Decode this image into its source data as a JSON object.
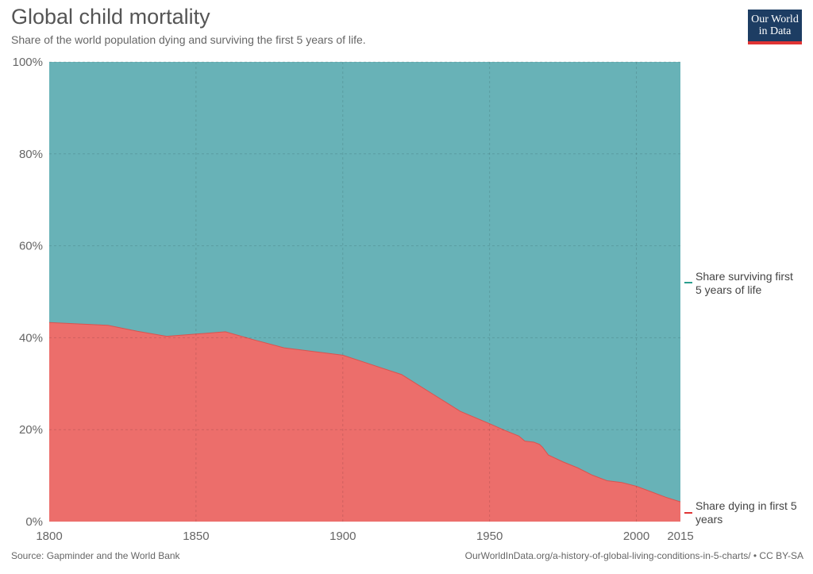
{
  "header": {
    "title": "Global child mortality",
    "subtitle": "Share of the world population dying and surviving the first 5 years of life."
  },
  "logo": {
    "line1": "Our World",
    "line2": "in Data",
    "bg": "#1d3d63",
    "accent": "#e03434"
  },
  "footer": {
    "source": "Source: Gapminder and the World Bank",
    "credit": "OurWorldInData.org/a-history-of-global-living-conditions-in-5-charts/ • CC BY-SA"
  },
  "chart_data": {
    "type": "area",
    "stacked": true,
    "x": [
      1800,
      1810,
      1820,
      1830,
      1840,
      1850,
      1860,
      1870,
      1880,
      1890,
      1900,
      1910,
      1920,
      1930,
      1940,
      1950,
      1955,
      1960,
      1962,
      1965,
      1967,
      1968,
      1970,
      1975,
      1980,
      1985,
      1990,
      1995,
      2000,
      2005,
      2010,
      2015
    ],
    "series": [
      {
        "name": "Share dying in first 5 years",
        "color": "#ec6e6b",
        "values": [
          43.3,
          43.0,
          42.7,
          41.4,
          40.3,
          40.8,
          41.3,
          39.5,
          37.8,
          37.0,
          36.2,
          34.1,
          32.0,
          28.0,
          24.0,
          21.3,
          19.9,
          18.6,
          17.5,
          17.3,
          16.8,
          16.2,
          14.5,
          13.0,
          11.7,
          10.1,
          8.9,
          8.5,
          7.7,
          6.5,
          5.3,
          4.3
        ]
      },
      {
        "name": "Share surviving first 5 years of life",
        "color": "#68b2b7",
        "values": [
          56.7,
          57.0,
          57.3,
          58.6,
          59.7,
          59.2,
          58.7,
          60.5,
          62.2,
          63.0,
          63.8,
          65.9,
          68.0,
          72.0,
          76.0,
          78.7,
          80.1,
          81.4,
          82.5,
          82.7,
          83.2,
          83.8,
          85.5,
          87.0,
          88.3,
          89.9,
          91.1,
          91.5,
          92.3,
          93.5,
          94.7,
          95.7
        ]
      }
    ],
    "legend_labels": {
      "surviving": [
        "Share surviving first",
        "5 years of life"
      ],
      "dying": [
        "Share dying in first 5",
        "years"
      ]
    },
    "legend_colors": {
      "surviving": "#2a9e8e",
      "dying": "#e03434"
    },
    "legend_position": "right",
    "xlim": [
      1800,
      2015
    ],
    "ylim": [
      0,
      100
    ],
    "x_ticks": [
      1800,
      1850,
      1900,
      1950,
      2000,
      2015
    ],
    "y_ticks": [
      0,
      20,
      40,
      60,
      80,
      100
    ],
    "y_tick_labels": [
      "0%",
      "20%",
      "40%",
      "60%",
      "80%",
      "100%"
    ],
    "grid": true
  }
}
